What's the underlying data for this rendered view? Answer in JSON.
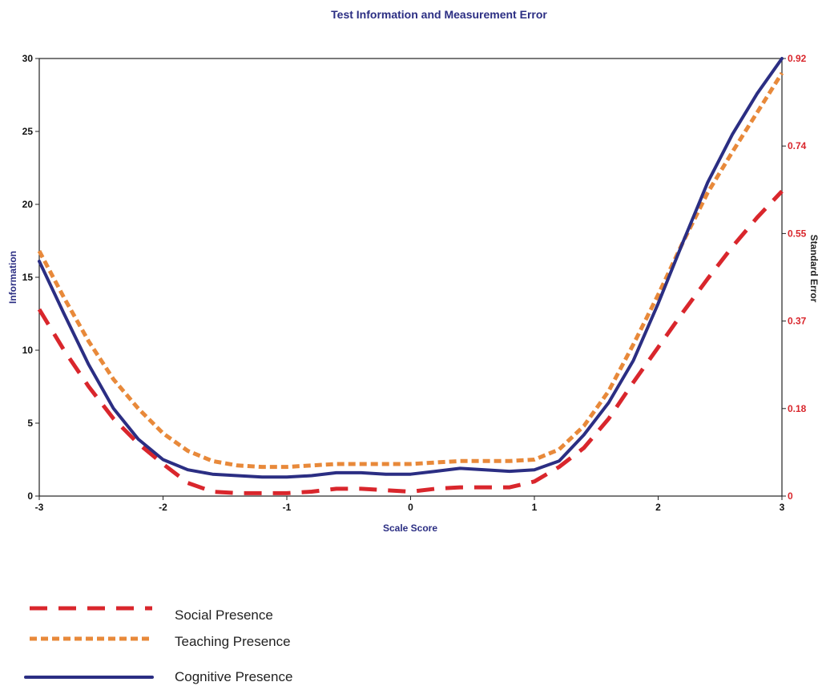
{
  "chart_data": {
    "type": "line",
    "title": "Test Information and Measurement Error",
    "xlabel": "Scale Score",
    "ylabel": "Information",
    "y2label": "Standard Error",
    "xlim": [
      -3,
      3
    ],
    "ylim": [
      0,
      30
    ],
    "x_ticks": [
      "-3",
      "-2",
      "-1",
      "0",
      "1",
      "2",
      "3"
    ],
    "y_ticks": [
      "0",
      "5",
      "10",
      "15",
      "20",
      "25",
      "30"
    ],
    "y2_ticks": [
      "0",
      "0.18",
      "0.37",
      "0.55",
      "0.74",
      "0.92"
    ],
    "grid": false,
    "legend_position": "bottom-left",
    "series": [
      {
        "name": "Social Presence",
        "color": "#d9262c",
        "style": "dashed",
        "x": [
          -3,
          -2.8,
          -2.6,
          -2.4,
          -2.2,
          -2,
          -1.8,
          -1.6,
          -1.4,
          -1.2,
          -1,
          -0.8,
          -0.6,
          -0.4,
          -0.2,
          0,
          0.2,
          0.4,
          0.6,
          0.8,
          1,
          1.2,
          1.4,
          1.6,
          1.8,
          2,
          2.2,
          2.4,
          2.6,
          2.8,
          3
        ],
        "values": [
          12.8,
          10,
          7.5,
          5.3,
          3.6,
          2.2,
          0.9,
          0.3,
          0.2,
          0.2,
          0.2,
          0.3,
          0.5,
          0.5,
          0.4,
          0.3,
          0.5,
          0.6,
          0.6,
          0.6,
          1.0,
          2.0,
          3.3,
          5.3,
          7.8,
          10.2,
          12.6,
          14.9,
          17.1,
          19.1,
          20.9
        ]
      },
      {
        "name": "Teaching Presence",
        "color": "#e8893a",
        "style": "dotted",
        "x": [
          -3,
          -2.8,
          -2.6,
          -2.4,
          -2.2,
          -2,
          -1.8,
          -1.6,
          -1.4,
          -1.2,
          -1,
          -0.8,
          -0.6,
          -0.4,
          -0.2,
          0,
          0.2,
          0.4,
          0.6,
          0.8,
          1,
          1.2,
          1.4,
          1.6,
          1.8,
          2,
          2.2,
          2.4,
          2.6,
          2.8,
          3
        ],
        "values": [
          16.8,
          13.6,
          10.6,
          8.0,
          6.0,
          4.3,
          3.1,
          2.4,
          2.1,
          2.0,
          2.0,
          2.1,
          2.2,
          2.2,
          2.2,
          2.2,
          2.3,
          2.4,
          2.4,
          2.4,
          2.5,
          3.2,
          4.8,
          7.2,
          10.4,
          13.8,
          17.4,
          20.8,
          23.6,
          26.3,
          29.0
        ]
      },
      {
        "name": "Cognitive Presence",
        "color": "#2b2e83",
        "style": "solid",
        "x": [
          -3,
          -2.8,
          -2.6,
          -2.4,
          -2.2,
          -2,
          -1.8,
          -1.6,
          -1.4,
          -1.2,
          -1,
          -0.8,
          -0.6,
          -0.4,
          -0.2,
          0,
          0.2,
          0.4,
          0.6,
          0.8,
          1,
          1.2,
          1.4,
          1.6,
          1.8,
          2,
          2.2,
          2.4,
          2.6,
          2.8,
          3
        ],
        "values": [
          16.1,
          12.5,
          9.0,
          6.0,
          3.9,
          2.5,
          1.8,
          1.5,
          1.4,
          1.3,
          1.3,
          1.4,
          1.6,
          1.6,
          1.5,
          1.5,
          1.7,
          1.9,
          1.8,
          1.7,
          1.8,
          2.4,
          4.2,
          6.4,
          9.3,
          13.2,
          17.4,
          21.5,
          24.8,
          27.6,
          30.0
        ]
      }
    ]
  }
}
